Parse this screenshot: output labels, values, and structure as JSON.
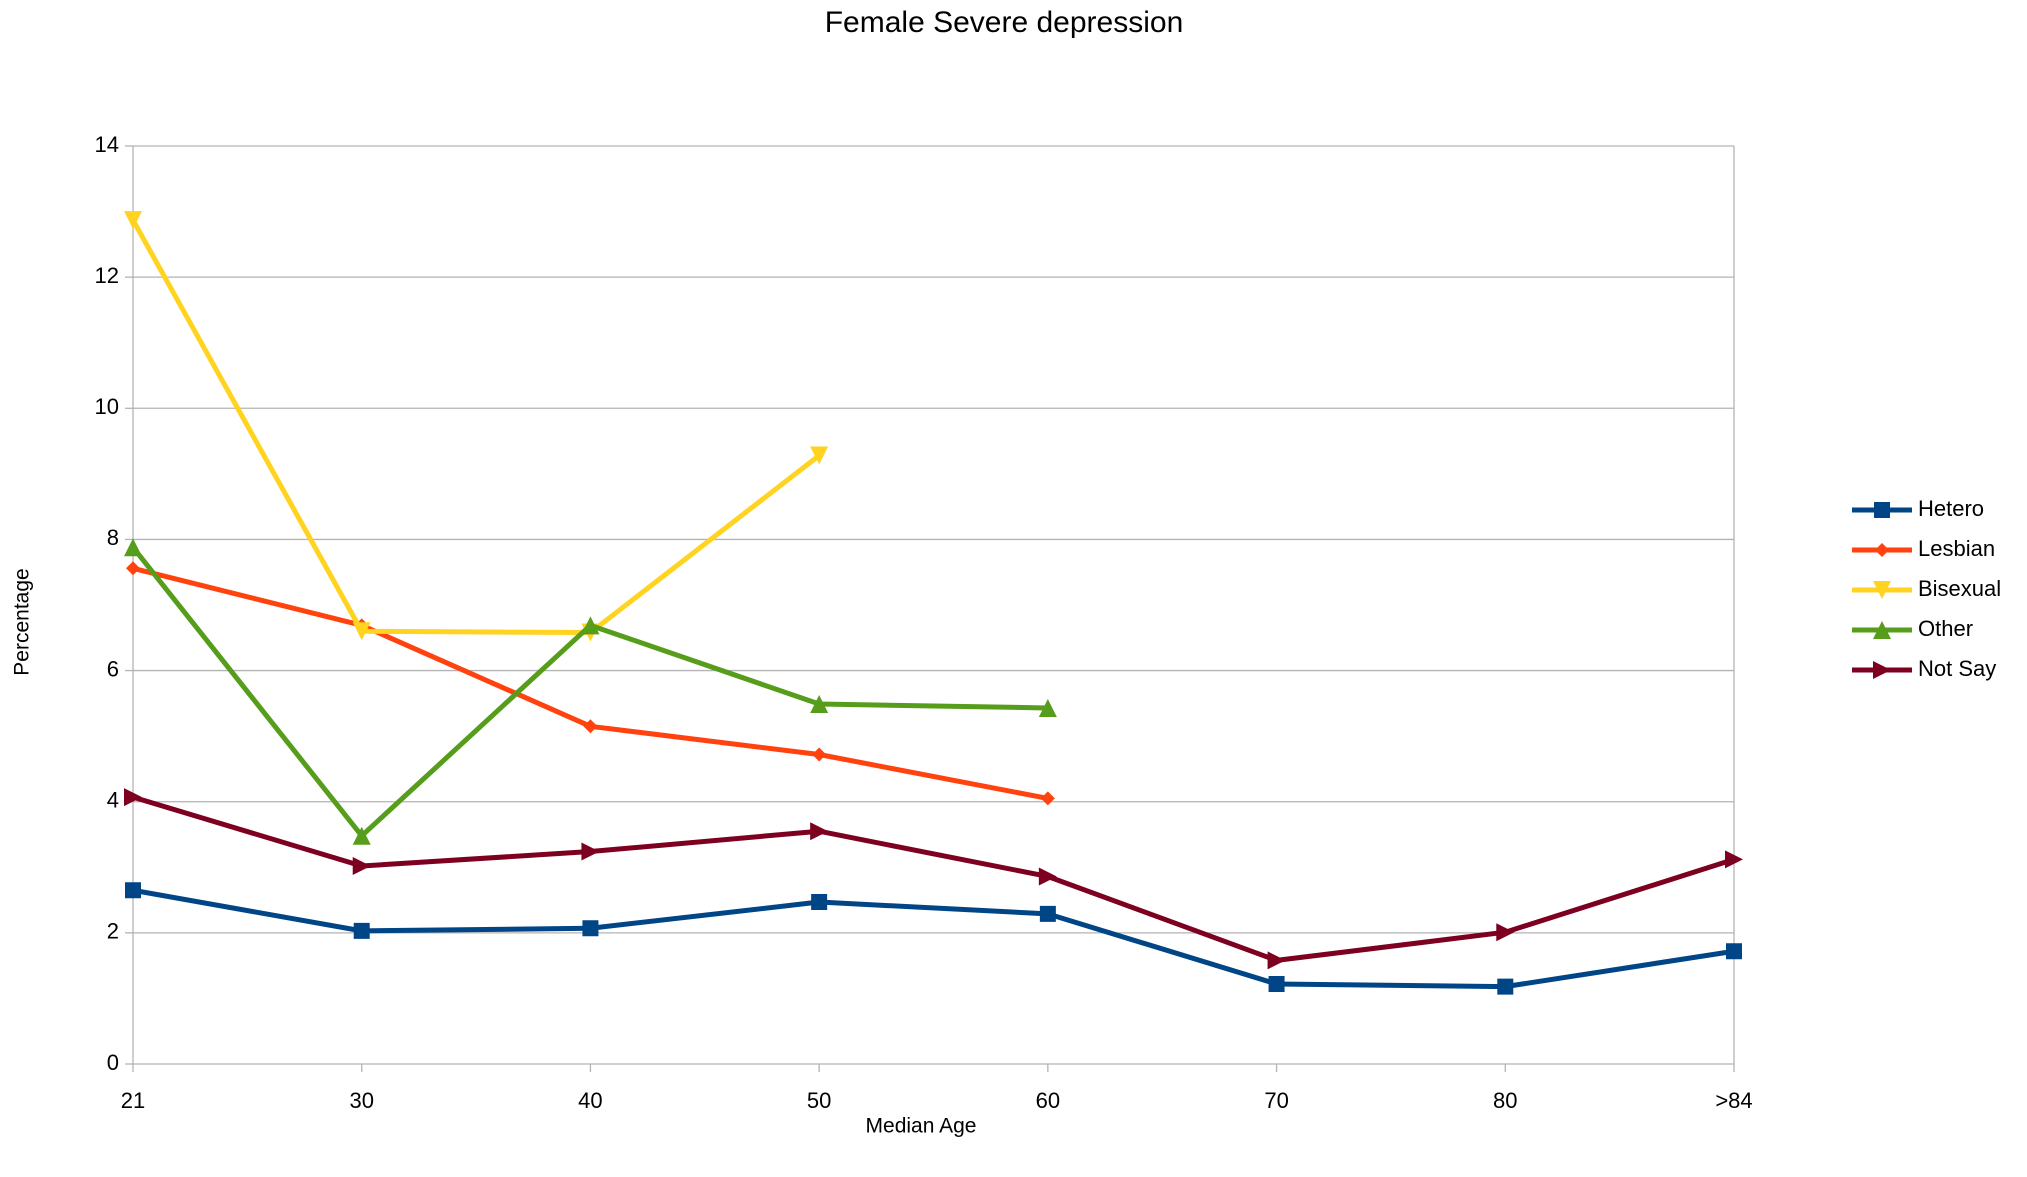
{
  "chart_data": {
    "type": "line",
    "title": "Female Severe depression",
    "x_label": "Median Age",
    "y_label": "Percentage",
    "categories": [
      "21",
      "30",
      "40",
      "50",
      "60",
      "70",
      "80",
      ">84"
    ],
    "ylim": [
      0,
      14
    ],
    "yticks": [
      0,
      2,
      4,
      6,
      8,
      10,
      12,
      14
    ],
    "grid": true,
    "legend": "right",
    "series": [
      {
        "name": "Hetero",
        "color": "#004586",
        "marker": "square",
        "values": [
          2.65,
          2.03,
          2.07,
          2.47,
          2.29,
          1.22,
          1.18,
          1.72
        ]
      },
      {
        "name": "Lesbian",
        "color": "#ff420e",
        "marker": "diamond",
        "values": [
          7.56,
          6.69,
          5.15,
          4.72,
          4.05,
          null,
          null,
          null
        ]
      },
      {
        "name": "Bisexual",
        "color": "#ffd320",
        "marker": "triangle-down",
        "values": [
          12.87,
          6.6,
          6.58,
          9.28,
          null,
          null,
          null,
          null
        ]
      },
      {
        "name": "Other",
        "color": "#579d1c",
        "marker": "triangle-up",
        "values": [
          7.88,
          3.48,
          6.69,
          5.49,
          5.43,
          null,
          null,
          null
        ]
      },
      {
        "name": "Not Say",
        "color": "#7e0021",
        "marker": "triangle-right",
        "values": [
          4.07,
          3.02,
          3.24,
          3.55,
          2.86,
          1.58,
          2.01,
          3.12
        ]
      }
    ]
  }
}
